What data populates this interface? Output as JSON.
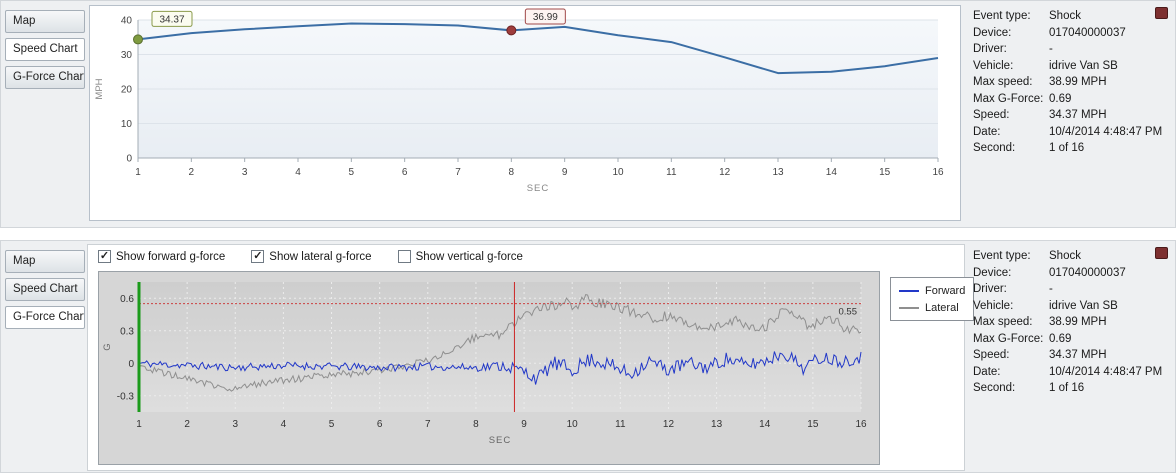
{
  "tabs": {
    "items": [
      "Map",
      "Speed Chart",
      "G-Force Chart"
    ],
    "top_selected": "Speed Chart",
    "bottom_selected": "G-Force Chart"
  },
  "checkboxes": [
    {
      "label": "Show forward g-force",
      "checked": true
    },
    {
      "label": "Show lateral g-force",
      "checked": true
    },
    {
      "label": "Show vertical g-force",
      "checked": false
    }
  ],
  "info_panel": {
    "rows": [
      {
        "label": "Event type:",
        "value": "Shock"
      },
      {
        "label": "Device:",
        "value": "017040000037"
      },
      {
        "label": "Driver:",
        "value": "-"
      },
      {
        "label": "Vehicle:",
        "value": "idrive Van SB"
      },
      {
        "label": "Max speed:",
        "value": "38.99 MPH"
      },
      {
        "label": "Max G-Force:",
        "value": "0.69"
      },
      {
        "label": "Speed:",
        "value": "34.37 MPH"
      },
      {
        "label": "Date:",
        "value": "10/4/2014 4:48:47 PM"
      },
      {
        "label": "Second:",
        "value": "1 of 16"
      }
    ]
  },
  "chart_data": [
    {
      "type": "line",
      "title": "",
      "xlabel": "SEC",
      "ylabel": "MPH",
      "x": [
        1,
        2,
        3,
        4,
        5,
        6,
        7,
        8,
        9,
        10,
        11,
        12,
        13,
        14,
        15,
        16
      ],
      "values": [
        34.37,
        36.2,
        37.3,
        38.2,
        38.99,
        38.8,
        38.4,
        36.99,
        38.0,
        35.6,
        33.6,
        29.2,
        24.6,
        25.0,
        26.6,
        29.0
      ],
      "ylim": [
        0,
        40
      ],
      "yticks": [
        0,
        10,
        20,
        30,
        40
      ],
      "grid": true,
      "line_color": "#3b6ea5",
      "markers": [
        {
          "x": 1,
          "y": 34.37,
          "label": "34.37",
          "fill": "#7f9b40",
          "stroke": "#5a7030",
          "box_fill": "#fbfcf0",
          "box_stroke": "#8a9a4a"
        },
        {
          "x": 8,
          "y": 36.99,
          "label": "36.99",
          "fill": "#9e3d3d",
          "stroke": "#6e2424",
          "box_fill": "#fdf4f2",
          "box_stroke": "#a04848"
        }
      ]
    },
    {
      "type": "line",
      "title": "",
      "xlabel": "SEC",
      "ylabel": "G",
      "xticks": [
        1,
        2,
        3,
        4,
        5,
        6,
        7,
        8,
        9,
        10,
        11,
        12,
        13,
        14,
        15,
        16
      ],
      "ylim": [
        -0.45,
        0.75
      ],
      "yticks": [
        -0.3,
        0,
        0.3,
        0.6
      ],
      "plot_bg": "#d6d6d6",
      "legend_position": "right",
      "threshold": {
        "value": 0.55,
        "label": "0.55",
        "color": "#cc4040"
      },
      "cursors": [
        {
          "x": 1,
          "color": "#1b9b1b",
          "width": 3
        },
        {
          "x": 8.8,
          "color": "#cc2525",
          "width": 1
        }
      ],
      "series": [
        {
          "name": "Forward",
          "color": "#2238c8",
          "keypoints": [
            [
              1,
              0.0
            ],
            [
              2,
              -0.02
            ],
            [
              3,
              -0.04
            ],
            [
              4,
              -0.02
            ],
            [
              5,
              -0.03
            ],
            [
              6,
              -0.04
            ],
            [
              7,
              -0.03
            ],
            [
              8,
              -0.04
            ],
            [
              8.6,
              -0.02
            ],
            [
              9,
              -0.08
            ],
            [
              9.3,
              -0.14
            ],
            [
              9.6,
              0.0
            ],
            [
              10,
              -0.06
            ],
            [
              10.4,
              0.04
            ],
            [
              10.8,
              -0.02
            ],
            [
              11.2,
              -0.1
            ],
            [
              11.6,
              0.02
            ],
            [
              12,
              -0.06
            ],
            [
              12.4,
              0.0
            ],
            [
              12.8,
              -0.04
            ],
            [
              13.2,
              0.04
            ],
            [
              13.6,
              -0.02
            ],
            [
              14,
              0.02
            ],
            [
              14.4,
              0.1
            ],
            [
              14.8,
              -0.04
            ],
            [
              15.2,
              0.06
            ],
            [
              15.6,
              0.02
            ],
            [
              16,
              0.06
            ]
          ],
          "noise_keypoints": [
            [
              1,
              0.035
            ],
            [
              8,
              0.035
            ],
            [
              9,
              0.07
            ],
            [
              16,
              0.06
            ]
          ]
        },
        {
          "name": "Lateral",
          "color": "#8f8f8f",
          "keypoints": [
            [
              1,
              -0.03
            ],
            [
              1.6,
              -0.1
            ],
            [
              2.2,
              -0.16
            ],
            [
              2.8,
              -0.24
            ],
            [
              3.2,
              -0.22
            ],
            [
              3.6,
              -0.18
            ],
            [
              4,
              -0.16
            ],
            [
              4.5,
              -0.13
            ],
            [
              5,
              -0.11
            ],
            [
              5.5,
              -0.09
            ],
            [
              6,
              -0.06
            ],
            [
              6.5,
              -0.03
            ],
            [
              7,
              0.02
            ],
            [
              7.4,
              0.1
            ],
            [
              7.8,
              0.2
            ],
            [
              8.2,
              0.28
            ],
            [
              8.5,
              0.26
            ],
            [
              8.8,
              0.38
            ],
            [
              9,
              0.47
            ],
            [
              9.3,
              0.5
            ],
            [
              9.6,
              0.53
            ],
            [
              9.9,
              0.56
            ],
            [
              10.1,
              0.5
            ],
            [
              10.3,
              0.63
            ],
            [
              10.5,
              0.56
            ],
            [
              10.8,
              0.54
            ],
            [
              11.1,
              0.5
            ],
            [
              11.4,
              0.44
            ],
            [
              11.7,
              0.42
            ],
            [
              12,
              0.44
            ],
            [
              12.3,
              0.4
            ],
            [
              12.6,
              0.34
            ],
            [
              13,
              0.32
            ],
            [
              13.4,
              0.4
            ],
            [
              13.8,
              0.3
            ],
            [
              14.1,
              0.36
            ],
            [
              14.4,
              0.5
            ],
            [
              14.7,
              0.4
            ],
            [
              15,
              0.34
            ],
            [
              15.3,
              0.44
            ],
            [
              15.6,
              0.34
            ],
            [
              16,
              0.3
            ]
          ],
          "noise_keypoints": [
            [
              1,
              0.03
            ],
            [
              7,
              0.035
            ],
            [
              8.5,
              0.045
            ],
            [
              16,
              0.05
            ]
          ]
        }
      ]
    }
  ]
}
